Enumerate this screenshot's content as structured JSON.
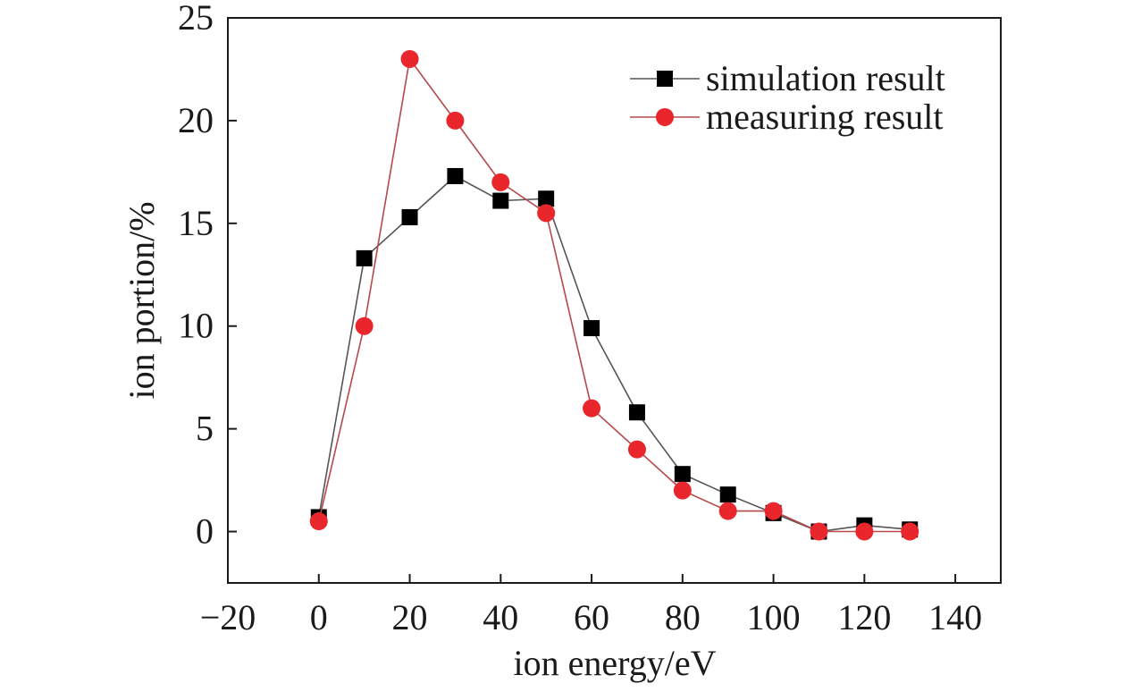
{
  "chart_data": {
    "type": "line",
    "title": "",
    "xlabel": "ion energy/eV",
    "ylabel": "ion portion/%",
    "xlim": [
      -20,
      150
    ],
    "ylim": [
      -2.5,
      25
    ],
    "xticks": [
      -20,
      0,
      20,
      40,
      60,
      80,
      100,
      120,
      140
    ],
    "xtick_labels": [
      "−20",
      "0",
      "20",
      "40",
      "60",
      "80",
      "100",
      "120",
      "140"
    ],
    "yticks": [
      0,
      5,
      10,
      15,
      20,
      25
    ],
    "ytick_labels": [
      "0",
      "5",
      "10",
      "15",
      "20",
      "25"
    ],
    "grid": false,
    "legend_position": "top-right",
    "series": [
      {
        "name": "simulation result",
        "marker": "square",
        "color": "#000000",
        "line_color": "#555555",
        "x": [
          0,
          10,
          20,
          30,
          40,
          50,
          60,
          70,
          80,
          90,
          100,
          110,
          120,
          130
        ],
        "y": [
          0.7,
          13.3,
          15.3,
          17.3,
          16.1,
          16.2,
          9.9,
          5.8,
          2.8,
          1.8,
          0.9,
          0.0,
          0.3,
          0.1
        ]
      },
      {
        "name": "measuring result",
        "marker": "circle",
        "color": "#e8262c",
        "line_color": "#b5494b",
        "x": [
          0,
          10,
          20,
          30,
          40,
          50,
          60,
          70,
          80,
          90,
          100,
          110,
          120,
          130
        ],
        "y": [
          0.5,
          10.0,
          23.0,
          20.0,
          17.0,
          15.5,
          6.0,
          4.0,
          2.0,
          1.0,
          1.0,
          0.0,
          0.0,
          0.0
        ]
      }
    ]
  }
}
